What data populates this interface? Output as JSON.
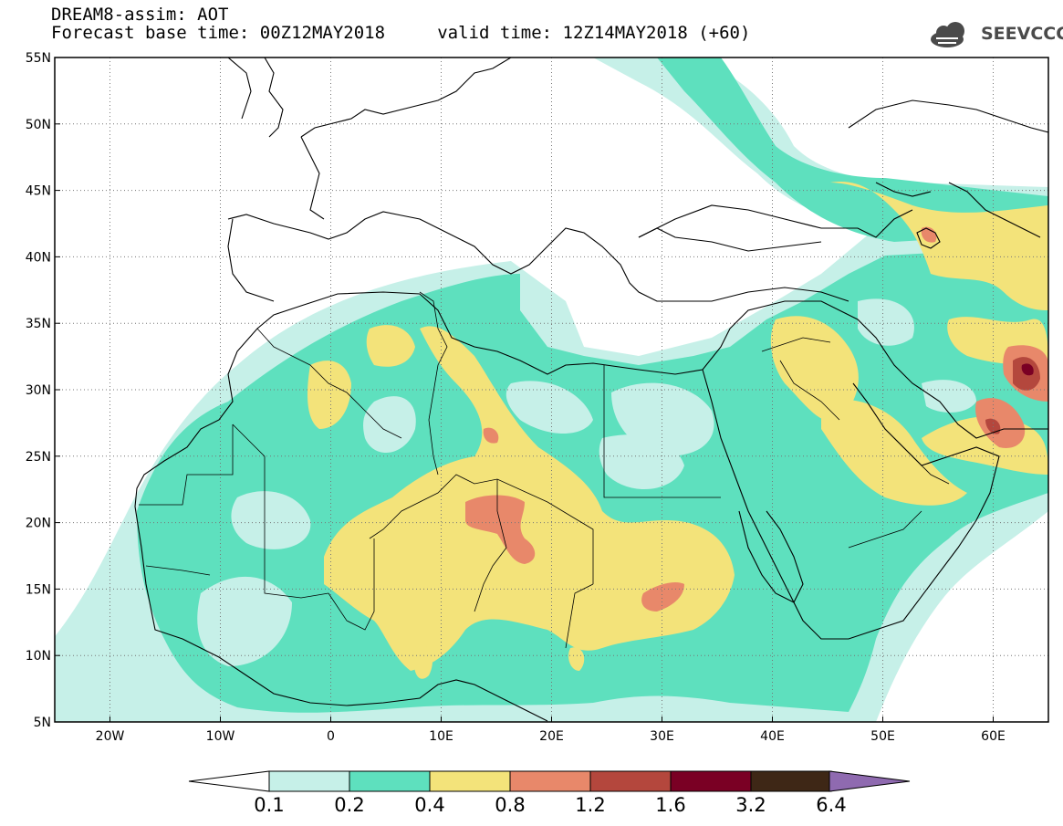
{
  "header": {
    "title_line1": "DREAM8-assim: AOT",
    "title_line2": "Forecast base time: 00Z12MAY2018     valid time: 12Z14MAY2018 (+60)",
    "logo_text": "SEEVCCC"
  },
  "map": {
    "lon_range": [
      -25,
      65
    ],
    "lat_range": [
      5,
      55
    ],
    "lat_ticks": [
      "55N",
      "50N",
      "45N",
      "40N",
      "35N",
      "30N",
      "25N",
      "20N",
      "15N",
      "10N",
      "5N"
    ],
    "lon_ticks": [
      "20W",
      "10W",
      "0",
      "10E",
      "20E",
      "30E",
      "40E",
      "50E",
      "60E"
    ],
    "gridlines": "dotted"
  },
  "colorbar": {
    "labels": [
      "0.1",
      "0.2",
      "0.4",
      "0.8",
      "1.2",
      "1.6",
      "3.2",
      "6.4"
    ],
    "colors": [
      "#c6f0e8",
      "#5ee0be",
      "#f3e37a",
      "#e8886a",
      "#b4473d",
      "#7a0024",
      "#3e2716"
    ],
    "under_color": "#ffffff",
    "over_color": "#8f6ab0"
  },
  "colors": {
    "level_0_1": "#c6f0e8",
    "level_0_2": "#5ee0be",
    "level_0_4": "#f3e37a",
    "level_0_8": "#e8886a",
    "level_1_2": "#b4473d",
    "level_1_6": "#7a0024",
    "level_3_2": "#3e2716",
    "level_6_4": "#8f6ab0"
  }
}
